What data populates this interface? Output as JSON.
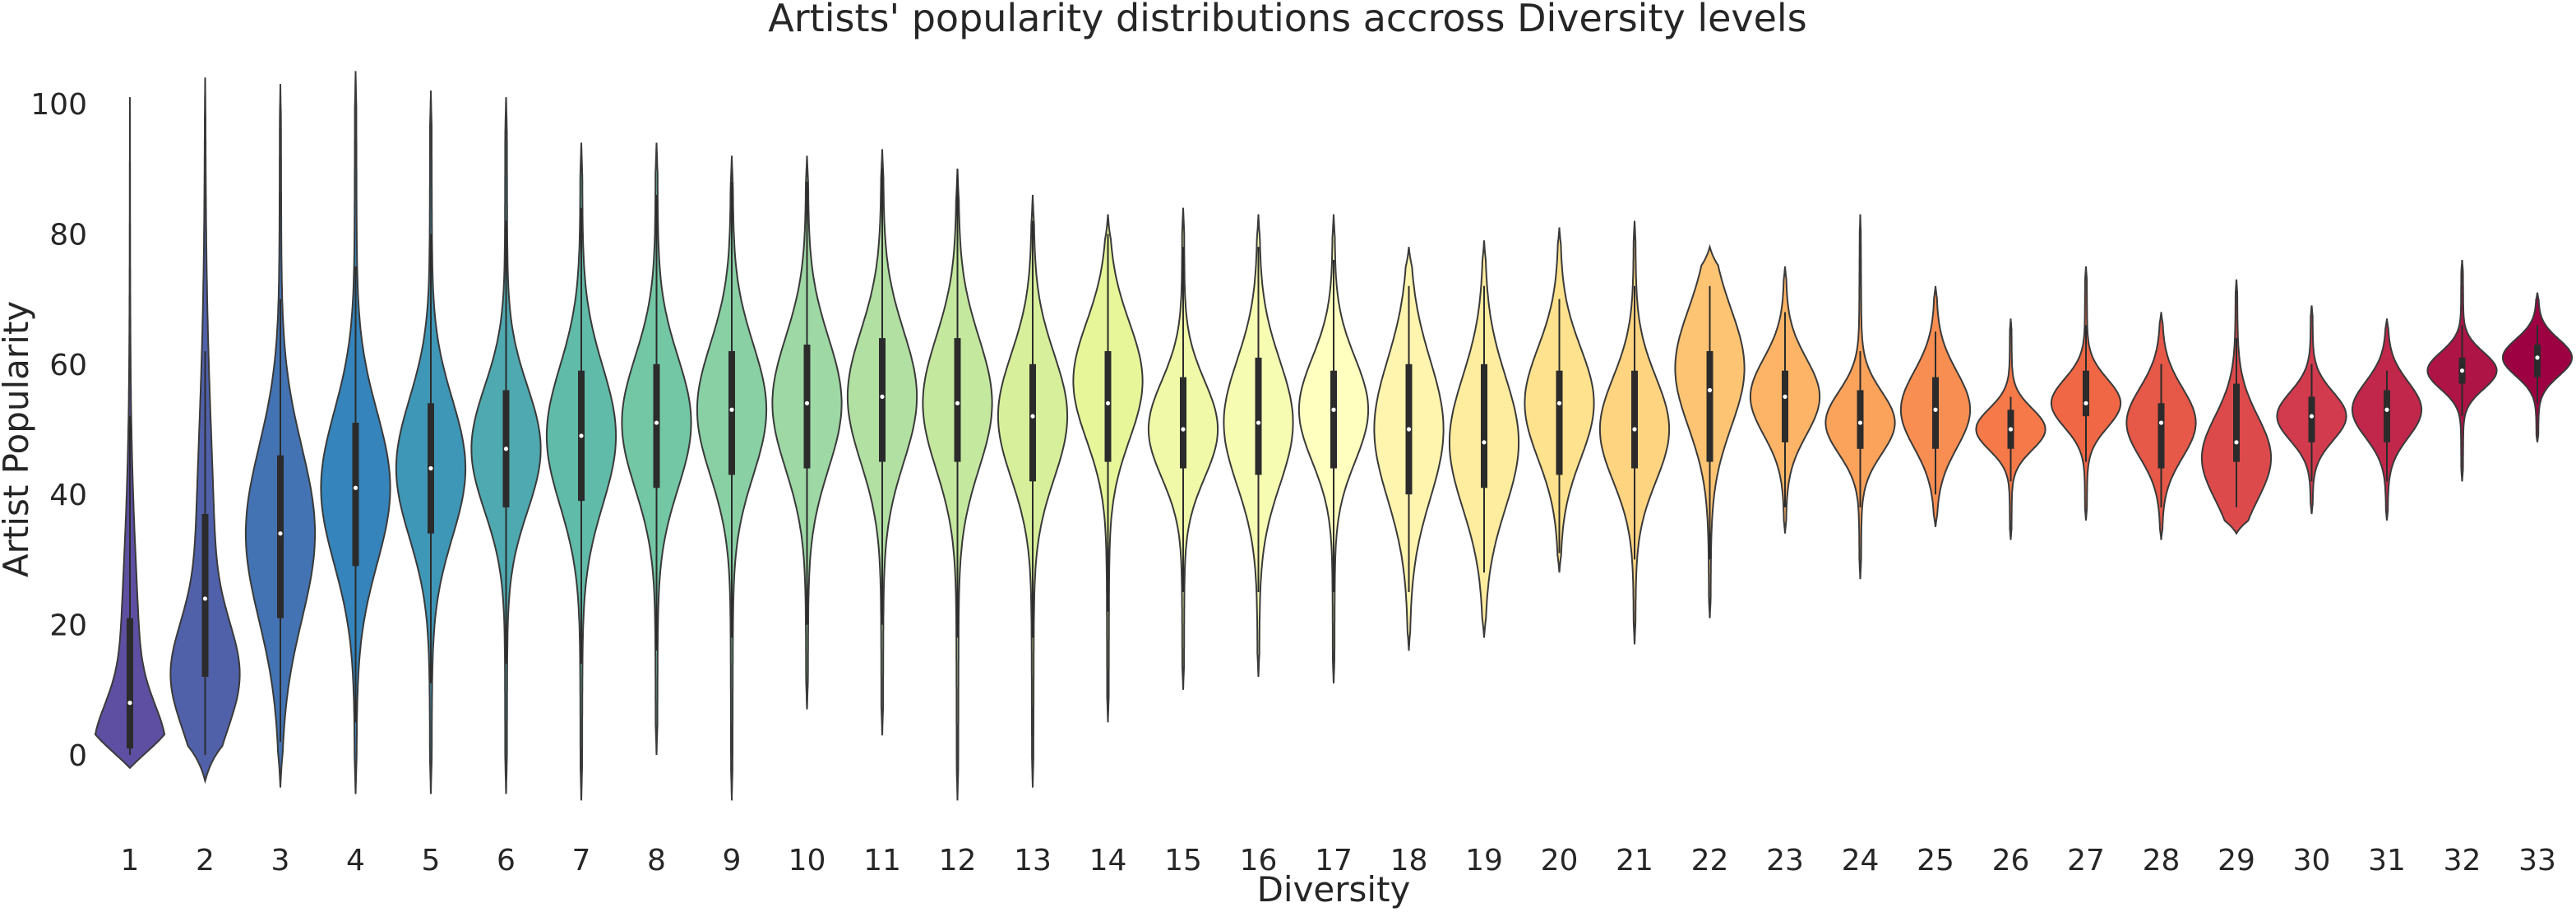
{
  "chart_data": {
    "type": "violin",
    "title": "Artists' popularity distributions accross Diversity levels",
    "xlabel": "Diversity",
    "ylabel": "Artist Popularity",
    "ylim": [
      -12,
      106
    ],
    "yticks": [
      0,
      20,
      40,
      60,
      80,
      100
    ],
    "grid": false,
    "legend": "none",
    "colormap": "Spectral_r",
    "categories": [
      "1",
      "2",
      "3",
      "4",
      "5",
      "6",
      "7",
      "8",
      "9",
      "10",
      "11",
      "12",
      "13",
      "14",
      "15",
      "16",
      "17",
      "18",
      "19",
      "20",
      "21",
      "22",
      "23",
      "24",
      "25",
      "26",
      "27",
      "28",
      "29",
      "30",
      "31",
      "32",
      "33"
    ],
    "violins": [
      {
        "category": "1",
        "min": -2,
        "max": 101,
        "q1": 1,
        "median": 8,
        "q3": 21,
        "whisker_low": 0,
        "whisker_high": 52,
        "density": "bottom-heavy"
      },
      {
        "category": "2",
        "min": -4,
        "max": 104,
        "q1": 12,
        "median": 24,
        "q3": 37,
        "whisker_low": 0,
        "whisker_high": 62,
        "density": "bottom-heavy"
      },
      {
        "category": "3",
        "min": -5,
        "max": 103,
        "q1": 21,
        "median": 34,
        "q3": 46,
        "whisker_low": 2,
        "whisker_high": 70,
        "density": "center"
      },
      {
        "category": "4",
        "min": -6,
        "max": 105,
        "q1": 29,
        "median": 41,
        "q3": 51,
        "whisker_low": 5,
        "whisker_high": 75,
        "density": "center"
      },
      {
        "category": "5",
        "min": -6,
        "max": 102,
        "q1": 34,
        "median": 44,
        "q3": 54,
        "whisker_low": 11,
        "whisker_high": 80,
        "density": "center"
      },
      {
        "category": "6",
        "min": -6,
        "max": 101,
        "q1": 38,
        "median": 47,
        "q3": 56,
        "whisker_low": 14,
        "whisker_high": 82,
        "density": "center"
      },
      {
        "category": "7",
        "min": -7,
        "max": 94,
        "q1": 39,
        "median": 49,
        "q3": 59,
        "whisker_low": 14,
        "whisker_high": 84,
        "density": "center"
      },
      {
        "category": "8",
        "min": 0,
        "max": 94,
        "q1": 41,
        "median": 51,
        "q3": 60,
        "whisker_low": 16,
        "whisker_high": 86,
        "density": "center"
      },
      {
        "category": "9",
        "min": -7,
        "max": 92,
        "q1": 43,
        "median": 53,
        "q3": 62,
        "whisker_low": 18,
        "whisker_high": 88,
        "density": "center"
      },
      {
        "category": "10",
        "min": 7,
        "max": 92,
        "q1": 44,
        "median": 54,
        "q3": 63,
        "whisker_low": 20,
        "whisker_high": 88,
        "density": "center"
      },
      {
        "category": "11",
        "min": 3,
        "max": 93,
        "q1": 45,
        "median": 55,
        "q3": 64,
        "whisker_low": 20,
        "whisker_high": 90,
        "density": "center"
      },
      {
        "category": "12",
        "min": -7,
        "max": 90,
        "q1": 45,
        "median": 54,
        "q3": 64,
        "whisker_low": 18,
        "whisker_high": 90,
        "density": "center"
      },
      {
        "category": "13",
        "min": -5,
        "max": 86,
        "q1": 42,
        "median": 52,
        "q3": 60,
        "whisker_low": 18,
        "whisker_high": 82,
        "density": "center"
      },
      {
        "category": "14",
        "min": 5,
        "max": 83,
        "q1": 45,
        "median": 54,
        "q3": 62,
        "whisker_low": 22,
        "whisker_high": 80,
        "density": "upper"
      },
      {
        "category": "15",
        "min": 10,
        "max": 84,
        "q1": 44,
        "median": 50,
        "q3": 58,
        "whisker_low": 25,
        "whisker_high": 78,
        "density": "center"
      },
      {
        "category": "16",
        "min": 12,
        "max": 83,
        "q1": 43,
        "median": 51,
        "q3": 61,
        "whisker_low": 25,
        "whisker_high": 78,
        "density": "center"
      },
      {
        "category": "17",
        "min": 11,
        "max": 83,
        "q1": 44,
        "median": 53,
        "q3": 59,
        "whisker_low": 25,
        "whisker_high": 76,
        "density": "center"
      },
      {
        "category": "18",
        "min": 16,
        "max": 78,
        "q1": 40,
        "median": 50,
        "q3": 60,
        "whisker_low": 25,
        "whisker_high": 72,
        "density": "center"
      },
      {
        "category": "19",
        "min": 18,
        "max": 79,
        "q1": 41,
        "median": 48,
        "q3": 60,
        "whisker_low": 28,
        "whisker_high": 72,
        "density": "center"
      },
      {
        "category": "20",
        "min": 28,
        "max": 81,
        "q1": 43,
        "median": 54,
        "q3": 59,
        "whisker_low": 31,
        "whisker_high": 70,
        "density": "center"
      },
      {
        "category": "21",
        "min": 17,
        "max": 82,
        "q1": 44,
        "median": 50,
        "q3": 59,
        "whisker_low": 30,
        "whisker_high": 72,
        "density": "center"
      },
      {
        "category": "22",
        "min": 21,
        "max": 78,
        "q1": 45,
        "median": 56,
        "q3": 62,
        "whisker_low": 30,
        "whisker_high": 72,
        "density": "upper"
      },
      {
        "category": "23",
        "min": 34,
        "max": 75,
        "q1": 48,
        "median": 55,
        "q3": 59,
        "whisker_low": 38,
        "whisker_high": 68,
        "density": "center"
      },
      {
        "category": "24",
        "min": 27,
        "max": 83,
        "q1": 47,
        "median": 51,
        "q3": 56,
        "whisker_low": 38,
        "whisker_high": 62,
        "density": "center"
      },
      {
        "category": "25",
        "min": 35,
        "max": 72,
        "q1": 47,
        "median": 53,
        "q3": 58,
        "whisker_low": 40,
        "whisker_high": 65,
        "density": "center"
      },
      {
        "category": "26",
        "min": 33,
        "max": 67,
        "q1": 47,
        "median": 50,
        "q3": 53,
        "whisker_low": 42,
        "whisker_high": 55,
        "density": "center"
      },
      {
        "category": "27",
        "min": 36,
        "max": 75,
        "q1": 52,
        "median": 54,
        "q3": 59,
        "whisker_low": 45,
        "whisker_high": 66,
        "density": "center"
      },
      {
        "category": "28",
        "min": 33,
        "max": 68,
        "q1": 44,
        "median": 51,
        "q3": 54,
        "whisker_low": 38,
        "whisker_high": 60,
        "density": "center"
      },
      {
        "category": "29",
        "min": 34,
        "max": 73,
        "q1": 45,
        "median": 48,
        "q3": 57,
        "whisker_low": 38,
        "whisker_high": 64,
        "density": "lower"
      },
      {
        "category": "30",
        "min": 37,
        "max": 69,
        "q1": 48,
        "median": 52,
        "q3": 55,
        "whisker_low": 42,
        "whisker_high": 60,
        "density": "center"
      },
      {
        "category": "31",
        "min": 36,
        "max": 67,
        "q1": 48,
        "median": 53,
        "q3": 56,
        "whisker_low": 42,
        "whisker_high": 59,
        "density": "center"
      },
      {
        "category": "32",
        "min": 42,
        "max": 76,
        "q1": 57,
        "median": 59,
        "q3": 61,
        "whisker_low": 52,
        "whisker_high": 66,
        "density": "center"
      },
      {
        "category": "33",
        "min": 48,
        "max": 71,
        "q1": 58,
        "median": 61,
        "q3": 63,
        "whisker_low": 54,
        "whisker_high": 66,
        "density": "center"
      }
    ]
  }
}
